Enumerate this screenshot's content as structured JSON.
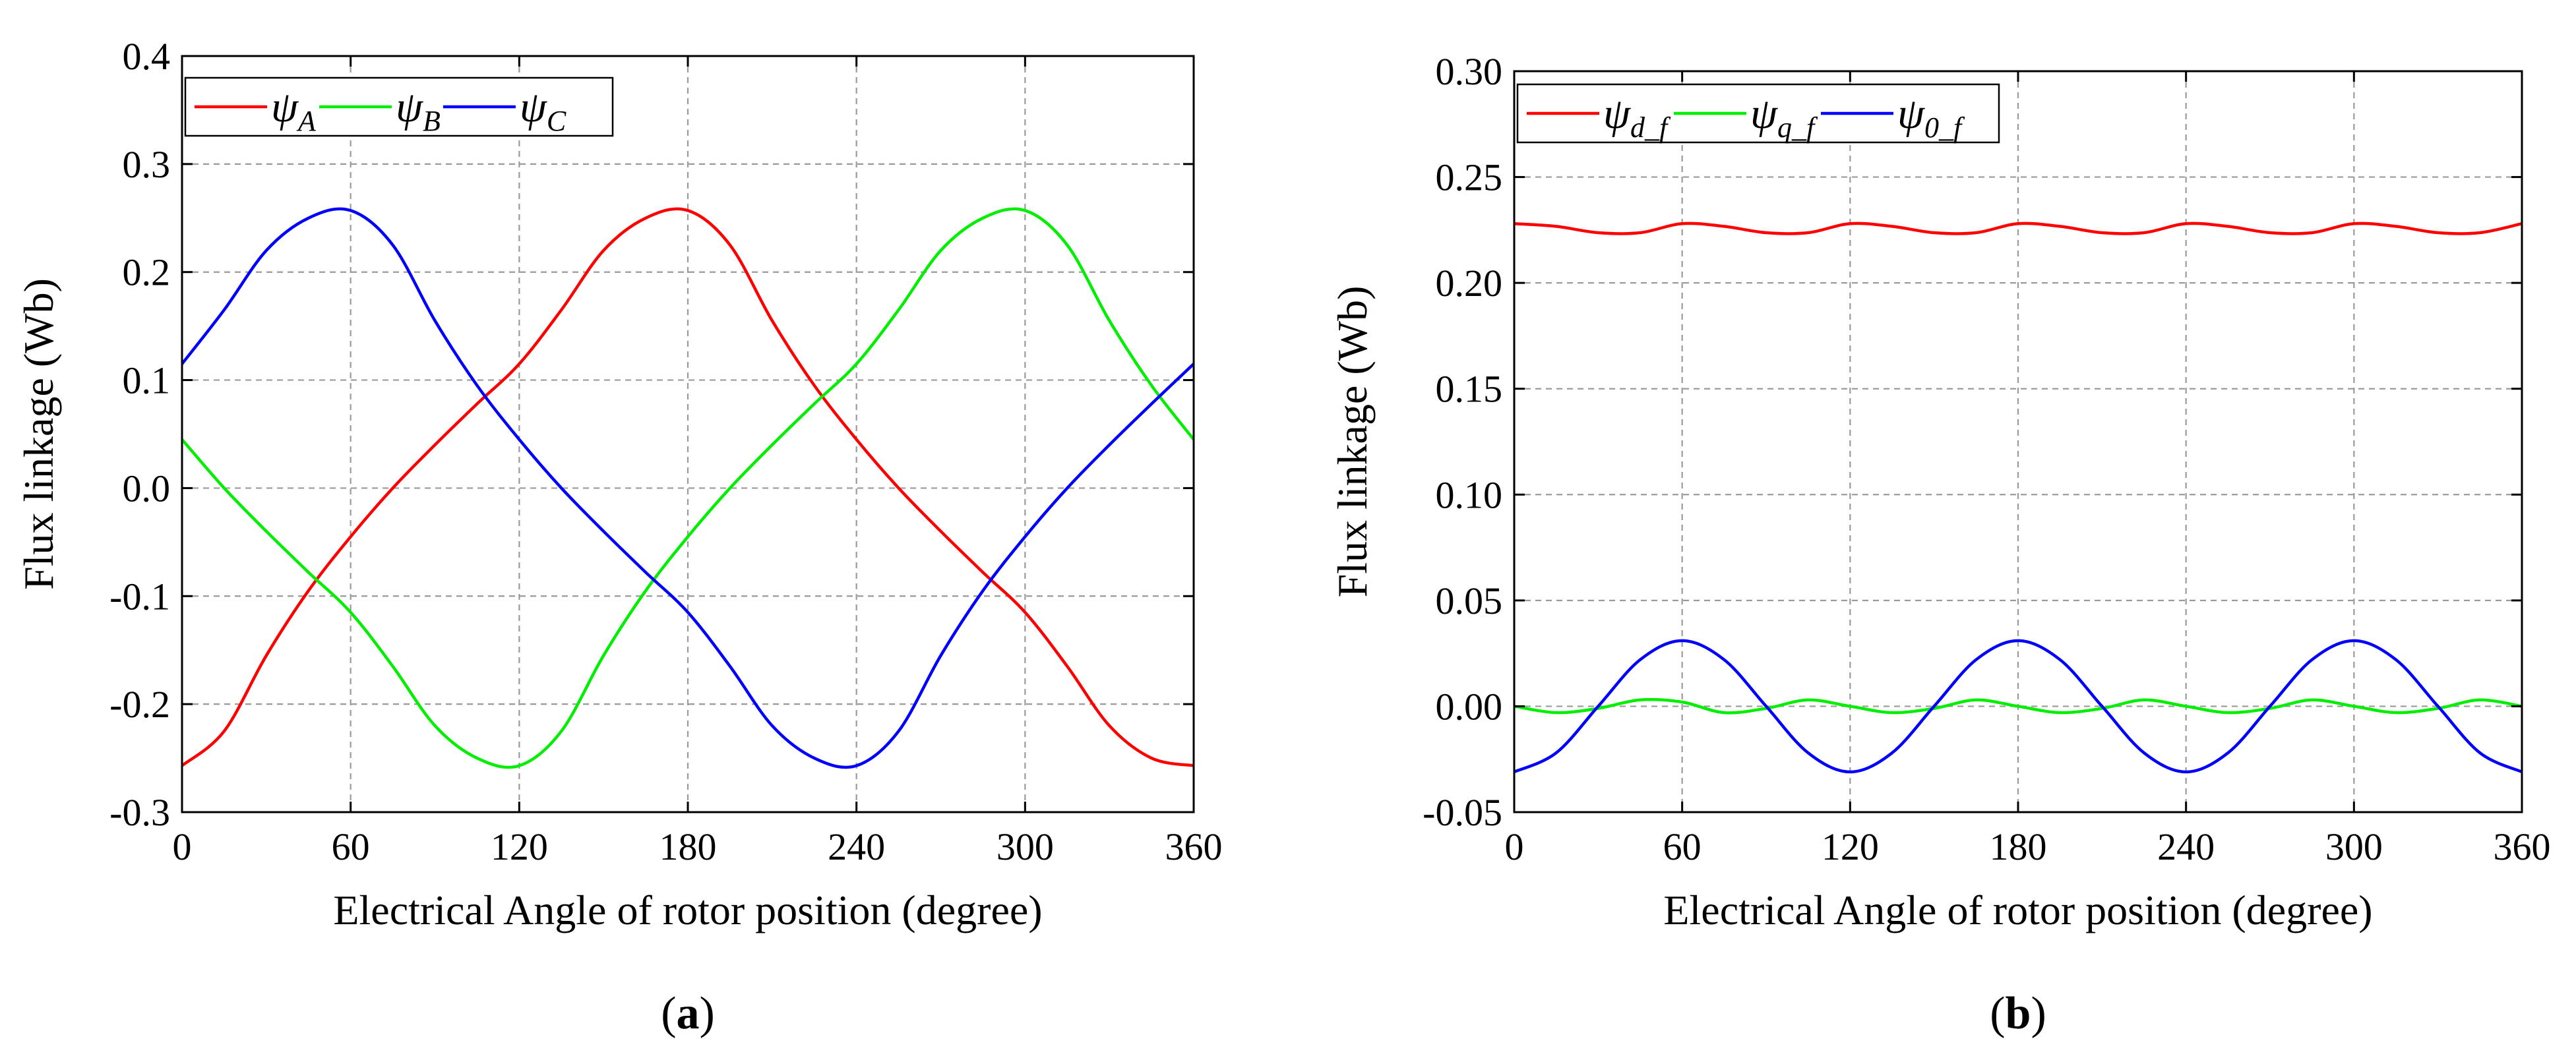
{
  "chart_data": [
    {
      "id": "a",
      "type": "line",
      "caption_label": "a",
      "xlabel": "Electrical Angle of rotor position (degree)",
      "ylabel": "Flux linkage (Wb)",
      "xlim": [
        0,
        360
      ],
      "ylim": [
        -0.3,
        0.4
      ],
      "xticks": [
        0,
        60,
        120,
        180,
        240,
        300,
        360
      ],
      "xtick_labels": [
        "0",
        "60",
        "120",
        "180",
        "240",
        "300",
        "360"
      ],
      "yticks": [
        -0.3,
        -0.2,
        -0.1,
        0.0,
        0.1,
        0.2,
        0.3,
        0.4
      ],
      "ytick_labels": [
        "-0.3",
        "-0.2",
        "-0.1",
        "0.0",
        "0.1",
        "0.2",
        "0.3",
        "0.4"
      ],
      "grid": true,
      "legend_position": "top-left",
      "x": [
        0,
        15,
        30,
        45,
        60,
        75,
        90,
        105,
        120,
        135,
        150,
        165,
        180,
        195,
        210,
        225,
        240,
        255,
        270,
        285,
        300,
        315,
        330,
        345,
        360
      ],
      "series": [
        {
          "name": "ψA",
          "symbol": "ψ",
          "sub": "A",
          "color": "#ff0000",
          "values": [
            -0.257,
            -0.225,
            -0.155,
            -0.095,
            -0.045,
            0.0,
            0.04,
            0.078,
            0.115,
            0.165,
            0.22,
            0.25,
            0.257,
            0.225,
            0.155,
            0.095,
            0.045,
            0.0,
            -0.04,
            -0.078,
            -0.115,
            -0.165,
            -0.22,
            -0.25,
            -0.257
          ]
        },
        {
          "name": "ψB",
          "symbol": "ψ",
          "sub": "B",
          "color": "#00ee00",
          "values": [
            0.045,
            0.0,
            -0.04,
            -0.078,
            -0.115,
            -0.165,
            -0.22,
            -0.25,
            -0.257,
            -0.225,
            -0.155,
            -0.095,
            -0.045,
            0.0,
            0.04,
            0.078,
            0.115,
            0.165,
            0.22,
            0.25,
            0.257,
            0.225,
            0.155,
            0.095,
            0.045
          ]
        },
        {
          "name": "ψC",
          "symbol": "ψ",
          "sub": "C",
          "color": "#0000ff",
          "values": [
            0.115,
            0.165,
            0.22,
            0.25,
            0.257,
            0.225,
            0.155,
            0.095,
            0.045,
            0.0,
            -0.04,
            -0.078,
            -0.115,
            -0.165,
            -0.22,
            -0.25,
            -0.257,
            -0.225,
            -0.155,
            -0.095,
            -0.045,
            0.0,
            0.04,
            0.078,
            0.115
          ]
        }
      ]
    },
    {
      "id": "b",
      "type": "line",
      "caption_label": "b",
      "xlabel": "Electrical Angle of rotor position (degree)",
      "ylabel": "Flux linkage (Wb)",
      "xlim": [
        0,
        360
      ],
      "ylim": [
        -0.05,
        0.3
      ],
      "xticks": [
        0,
        60,
        120,
        180,
        240,
        300,
        360
      ],
      "xtick_labels": [
        "0",
        "60",
        "120",
        "180",
        "240",
        "300",
        "360"
      ],
      "yticks": [
        -0.05,
        0.0,
        0.05,
        0.1,
        0.15,
        0.2,
        0.25,
        0.3
      ],
      "ytick_labels": [
        "-0.05",
        "0.00",
        "0.05",
        "0.10",
        "0.15",
        "0.20",
        "0.25",
        "0.30"
      ],
      "grid": true,
      "legend_position": "top-left",
      "x": [
        0,
        15,
        30,
        45,
        60,
        75,
        90,
        105,
        120,
        135,
        150,
        165,
        180,
        195,
        210,
        225,
        240,
        255,
        270,
        285,
        300,
        315,
        330,
        345,
        360
      ],
      "series": [
        {
          "name": "ψd_f",
          "symbol": "ψ",
          "sub": "d_f",
          "color": "#ff0000",
          "values": [
            0.228,
            0.2267,
            0.2237,
            0.2237,
            0.228,
            0.2267,
            0.2237,
            0.2237,
            0.228,
            0.2267,
            0.2237,
            0.2237,
            0.228,
            0.2267,
            0.2237,
            0.2237,
            0.228,
            0.2267,
            0.2237,
            0.2237,
            0.228,
            0.2267,
            0.2237,
            0.2237,
            0.228
          ]
        },
        {
          "name": "ψq_f",
          "symbol": "ψ",
          "sub": "q_f",
          "color": "#00ee00",
          "values": [
            0.0,
            -0.003,
            -0.001,
            0.003,
            0.002,
            -0.003,
            -0.001,
            0.003,
            0.0,
            -0.003,
            -0.001,
            0.003,
            0.0,
            -0.003,
            -0.001,
            0.003,
            0.0,
            -0.003,
            -0.001,
            0.003,
            0.0,
            -0.003,
            -0.001,
            0.003,
            0.0
          ]
        },
        {
          "name": "ψ0_f",
          "symbol": "ψ",
          "sub": "0_f",
          "color": "#0000ff",
          "values": [
            -0.031,
            -0.022,
            0.0,
            0.022,
            0.031,
            0.022,
            0.0,
            -0.022,
            -0.031,
            -0.022,
            0.0,
            0.022,
            0.031,
            0.022,
            0.0,
            -0.022,
            -0.031,
            -0.022,
            0.0,
            0.022,
            0.031,
            0.022,
            0.0,
            -0.022,
            -0.031
          ]
        }
      ]
    }
  ]
}
